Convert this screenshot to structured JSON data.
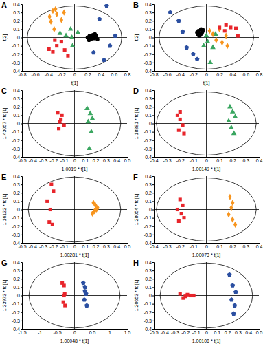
{
  "chart_data": [
    {
      "type": "scatter",
      "title": "A",
      "xlabel": "t[1]",
      "ylabel": "t[2]",
      "xlim": [
        -0.8,
        0.8
      ],
      "xticks": [
        -0.8,
        -0.6,
        -0.4,
        -0.2,
        0,
        0.2,
        0.4,
        0.6,
        0.8
      ],
      "ylim": [
        -0.4,
        0.4
      ],
      "yticks": [
        -0.4,
        -0.3,
        -0.2,
        -0.1,
        0,
        0.1,
        0.2,
        0.3,
        0.4
      ],
      "ellipse": [
        0.72,
        0.38
      ],
      "series": [
        {
          "color": "#f7941d",
          "marker": "diamond",
          "x": [
            -0.38,
            -0.33,
            -0.29,
            -0.36,
            -0.27,
            -0.16,
            -0.2,
            -0.31
          ],
          "values": [
            0.25,
            0.32,
            0.34,
            0.19,
            0.28,
            0.3,
            0.21,
            0.1
          ]
        },
        {
          "color": "#e8252b",
          "marker": "square",
          "x": [
            -0.39,
            -0.33,
            -0.3,
            -0.2,
            -0.15,
            -0.1,
            -0.27
          ],
          "values": [
            -0.14,
            -0.17,
            -0.03,
            -0.05,
            -0.15,
            -0.22,
            -0.1
          ]
        },
        {
          "color": "#3aa660",
          "marker": "triangle",
          "x": [
            -0.22,
            -0.13,
            -0.06,
            -0.04,
            0.05,
            -0.03
          ],
          "values": [
            0.05,
            0.02,
            0.1,
            0.0,
            0.06,
            -0.1
          ]
        },
        {
          "color": "#000000",
          "marker": "circle",
          "x": [
            0.2,
            0.23,
            0.25,
            0.28,
            0.3,
            0.33,
            0.26,
            0.22,
            0.31,
            0.35
          ],
          "values": [
            0.0,
            0.02,
            -0.02,
            0.03,
            -0.01,
            0.02,
            0.0,
            -0.03,
            0.04,
            -0.02
          ]
        },
        {
          "color": "#2b4fa1",
          "marker": "pentagon",
          "x": [
            0.49,
            0.38,
            0.29,
            0.45,
            0.54,
            0.62
          ],
          "values": [
            0.38,
            0.22,
            -0.18,
            -0.27,
            -0.1,
            0.02
          ]
        }
      ]
    },
    {
      "type": "scatter",
      "title": "B",
      "xlabel": "t[1]",
      "ylabel": "t[2]",
      "xlim": [
        -0.8,
        0.8
      ],
      "xticks": [
        -0.8,
        -0.6,
        -0.4,
        -0.2,
        0,
        0.2,
        0.4,
        0.6,
        0.8
      ],
      "ylim": [
        -0.4,
        0.4
      ],
      "yticks": [
        -0.4,
        -0.3,
        -0.2,
        -0.1,
        0,
        0.1,
        0.2,
        0.3,
        0.4
      ],
      "ellipse": [
        0.72,
        0.38
      ],
      "series": [
        {
          "color": "#2b4fa1",
          "marker": "pentagon",
          "x": [
            -0.55,
            -0.42,
            -0.36,
            -0.3,
            -0.2,
            -0.14
          ],
          "values": [
            0.3,
            0.2,
            0.07,
            -0.12,
            -0.2,
            -0.26
          ]
        },
        {
          "color": "#000000",
          "marker": "circle",
          "x": [
            -0.14,
            -0.12,
            -0.1,
            -0.08,
            -0.06,
            -0.11,
            -0.09,
            -0.05,
            -0.13,
            -0.07
          ],
          "values": [
            0.06,
            0.08,
            0.05,
            0.1,
            0.07,
            0.02,
            0.03,
            0.09,
            0.04,
            0.05
          ]
        },
        {
          "color": "#3aa660",
          "marker": "triangle",
          "x": [
            -0.04,
            0.02,
            0.0,
            0.06,
            0.1,
            0.14
          ],
          "values": [
            -0.1,
            -0.05,
            0.02,
            -0.3,
            -0.12,
            0.04
          ]
        },
        {
          "color": "#f7941d",
          "marker": "diamond",
          "x": [
            0.05,
            0.1,
            0.15,
            0.2,
            0.24,
            0.3,
            0.32
          ],
          "values": [
            0.08,
            0.04,
            -0.03,
            0.1,
            -0.06,
            0.02,
            -0.1
          ]
        },
        {
          "color": "#e8252b",
          "marker": "square",
          "x": [
            0.2,
            0.28,
            0.37,
            0.45,
            0.3,
            0.48
          ],
          "values": [
            0.12,
            0.08,
            0.12,
            0.11,
            0.15,
            0.02
          ]
        }
      ]
    },
    {
      "type": "scatter",
      "title": "C",
      "xlabel": "1.0019 * t[1]",
      "ylabel": "1.43057 * to[1]",
      "xlim": [
        -0.5,
        0.5
      ],
      "xticks": [
        -0.5,
        -0.4,
        -0.3,
        -0.2,
        -0.1,
        0,
        0.1,
        0.2,
        0.3,
        0.4,
        0.5
      ],
      "ylim": [
        -0.4,
        0.4
      ],
      "yticks": [
        -0.4,
        -0.3,
        -0.2,
        -0.1,
        0,
        0.1,
        0.2,
        0.3,
        0.4
      ],
      "ellipse": [
        0.44,
        0.39
      ],
      "series": [
        {
          "color": "#e8252b",
          "marker": "square",
          "x": [
            -0.16,
            -0.12,
            -0.14,
            -0.1,
            -0.15,
            -0.13
          ],
          "values": [
            0.13,
            0.1,
            0.02,
            -0.02,
            -0.06,
            0.05
          ]
        },
        {
          "color": "#3aa660",
          "marker": "triangle",
          "x": [
            0.12,
            0.15,
            0.17,
            0.13,
            0.16,
            0.14
          ],
          "values": [
            0.18,
            0.12,
            0.06,
            0.02,
            -0.1,
            -0.3
          ]
        }
      ]
    },
    {
      "type": "scatter",
      "title": "D",
      "xlabel": "1.00149 * t[1]",
      "ylabel": "1.18881 * to[1]",
      "xlim": [
        -0.4,
        0.4
      ],
      "xticks": [
        -0.4,
        -0.3,
        -0.2,
        -0.1,
        0,
        0.1,
        0.2,
        0.3,
        0.4
      ],
      "ylim": [
        -0.4,
        0.4
      ],
      "yticks": [
        -0.4,
        -0.3,
        -0.2,
        -0.1,
        0,
        0.1,
        0.2,
        0.3,
        0.4
      ],
      "ellipse": [
        0.38,
        0.38
      ],
      "series": [
        {
          "color": "#e8252b",
          "marker": "square",
          "x": [
            -0.22,
            -0.2,
            -0.18,
            -0.21,
            -0.17,
            -0.2
          ],
          "values": [
            0.1,
            0.05,
            -0.02,
            -0.08,
            -0.12,
            0.14
          ]
        },
        {
          "color": "#3aa660",
          "marker": "triangle",
          "x": [
            0.18,
            0.2,
            0.22,
            0.19,
            0.21,
            0.17
          ],
          "values": [
            0.2,
            0.14,
            0.08,
            -0.05,
            -0.12,
            0.03
          ]
        }
      ]
    },
    {
      "type": "scatter",
      "title": "E",
      "xlabel": "1.00281 * t[1]",
      "ylabel": "1.16132 * to[1]",
      "xlim": [
        -0.5,
        0.5
      ],
      "xticks": [
        -0.5,
        -0.4,
        -0.3,
        -0.2,
        -0.1,
        0,
        0.1,
        0.2,
        0.3,
        0.4,
        0.5
      ],
      "ylim": [
        -0.4,
        0.4
      ],
      "yticks": [
        -0.4,
        -0.3,
        -0.2,
        -0.1,
        0,
        0.1,
        0.2,
        0.3,
        0.4
      ],
      "ellipse": [
        0.44,
        0.39
      ],
      "series": [
        {
          "color": "#e8252b",
          "marker": "square",
          "x": [
            -0.22,
            -0.2,
            -0.26,
            -0.24,
            -0.21,
            -0.23
          ],
          "values": [
            0.3,
            0.22,
            0.1,
            -0.15,
            -0.18,
            0.0
          ]
        },
        {
          "color": "#f7941d",
          "marker": "diamond",
          "x": [
            0.18,
            0.2,
            0.22,
            0.19,
            0.17,
            0.21
          ],
          "values": [
            0.08,
            0.05,
            0.02,
            -0.02,
            -0.05,
            0.0
          ]
        }
      ]
    },
    {
      "type": "scatter",
      "title": "F",
      "xlabel": "1.00073 * t[1]",
      "ylabel": "1.28054 * to[1]",
      "xlim": [
        -0.4,
        0.4
      ],
      "xticks": [
        -0.4,
        -0.3,
        -0.2,
        -0.1,
        0,
        0.1,
        0.2,
        0.3,
        0.4
      ],
      "ylim": [
        -0.4,
        0.4
      ],
      "yticks": [
        -0.4,
        -0.3,
        -0.2,
        -0.1,
        0,
        0.1,
        0.2,
        0.3,
        0.4
      ],
      "ellipse": [
        0.38,
        0.38
      ],
      "series": [
        {
          "color": "#e8252b",
          "marker": "square",
          "x": [
            -0.2,
            -0.18,
            -0.22,
            -0.19,
            -0.17,
            -0.21
          ],
          "values": [
            0.12,
            0.05,
            0.0,
            -0.05,
            -0.1,
            -0.14
          ]
        },
        {
          "color": "#f7941d",
          "marker": "diamond",
          "x": [
            0.18,
            0.2,
            0.19,
            0.17,
            0.2,
            0.22
          ],
          "values": [
            0.15,
            0.08,
            0.02,
            -0.06,
            -0.12,
            -0.18
          ]
        }
      ]
    },
    {
      "type": "scatter",
      "title": "G",
      "xlabel": "1.00048 * t[1]",
      "ylabel": "1.33973 * to[1]",
      "xlim": [
        -1.5,
        1.5
      ],
      "xticks": [
        -1.5,
        -1,
        -0.5,
        0,
        0.5,
        1,
        1.5
      ],
      "ylim": [
        -0.4,
        0.4
      ],
      "yticks": [
        -0.4,
        -0.3,
        -0.2,
        -0.1,
        0,
        0.1,
        0.2,
        0.3,
        0.4
      ],
      "ellipse": [
        1.3,
        0.39
      ],
      "series": [
        {
          "color": "#e8252b",
          "marker": "square",
          "x": [
            -0.35,
            -0.3,
            -0.28,
            -0.32,
            -0.27,
            -0.3
          ],
          "values": [
            0.15,
            0.12,
            0.02,
            -0.08,
            -0.12,
            0.0
          ]
        },
        {
          "color": "#2b4fa1",
          "marker": "pentagon",
          "x": [
            0.25,
            0.3,
            0.33,
            0.28,
            0.35,
            0.3
          ],
          "values": [
            0.15,
            0.05,
            0.02,
            -0.05,
            -0.12,
            0.1
          ]
        }
      ]
    },
    {
      "type": "scatter",
      "title": "H",
      "xlabel": "1.00108 * t[1]",
      "ylabel": "1.20653 * to[1]",
      "xlim": [
        -0.5,
        0.5
      ],
      "xticks": [
        -0.5,
        -0.4,
        -0.3,
        -0.2,
        -0.1,
        0,
        0.1,
        0.2,
        0.3,
        0.4,
        0.5
      ],
      "ylim": [
        -0.4,
        0.4
      ],
      "yticks": [
        -0.4,
        -0.3,
        -0.2,
        -0.1,
        0,
        0.1,
        0.2,
        0.3,
        0.4
      ],
      "ellipse": [
        0.44,
        0.39
      ],
      "series": [
        {
          "color": "#e8252b",
          "marker": "square",
          "x": [
            -0.25,
            -0.2,
            -0.15,
            -0.22,
            -0.18,
            -0.12
          ],
          "values": [
            0.02,
            -0.01,
            0.0,
            -0.03,
            0.01,
            0.0
          ]
        },
        {
          "color": "#2b4fa1",
          "marker": "pentagon",
          "x": [
            0.22,
            0.25,
            0.28,
            0.24,
            0.27,
            0.26
          ],
          "values": [
            0.25,
            0.12,
            0.04,
            -0.05,
            -0.12,
            -0.22
          ]
        }
      ]
    }
  ]
}
